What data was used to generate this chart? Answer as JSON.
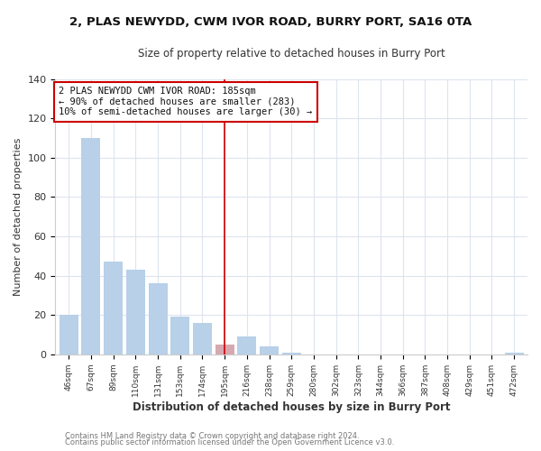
{
  "title": "2, PLAS NEWYDD, CWM IVOR ROAD, BURRY PORT, SA16 0TA",
  "subtitle": "Size of property relative to detached houses in Burry Port",
  "xlabel": "Distribution of detached houses by size in Burry Port",
  "ylabel": "Number of detached properties",
  "bin_labels": [
    "46sqm",
    "67sqm",
    "89sqm",
    "110sqm",
    "131sqm",
    "153sqm",
    "174sqm",
    "195sqm",
    "216sqm",
    "238sqm",
    "259sqm",
    "280sqm",
    "302sqm",
    "323sqm",
    "344sqm",
    "366sqm",
    "387sqm",
    "408sqm",
    "429sqm",
    "451sqm",
    "472sqm"
  ],
  "bar_values": [
    20,
    110,
    47,
    43,
    36,
    19,
    16,
    5,
    9,
    4,
    1,
    0,
    0,
    0,
    0,
    0,
    0,
    0,
    0,
    0,
    1
  ],
  "bar_color": "#b8d0e8",
  "highlight_bar_index": 7,
  "highlight_bar_color": "#d8a8b0",
  "vline_color": "#cc0000",
  "annotation_line1": "2 PLAS NEWYDD CWM IVOR ROAD: 185sqm",
  "annotation_line2": "← 90% of detached houses are smaller (283)",
  "annotation_line3": "10% of semi-detached houses are larger (30) →",
  "ylim": [
    0,
    140
  ],
  "yticks": [
    0,
    20,
    40,
    60,
    80,
    100,
    120,
    140
  ],
  "footer_line1": "Contains HM Land Registry data © Crown copyright and database right 2024.",
  "footer_line2": "Contains public sector information licensed under the Open Government Licence v3.0.",
  "background_color": "#ffffff",
  "plot_bg_color": "#ffffff",
  "grid_color": "#dde4ef"
}
